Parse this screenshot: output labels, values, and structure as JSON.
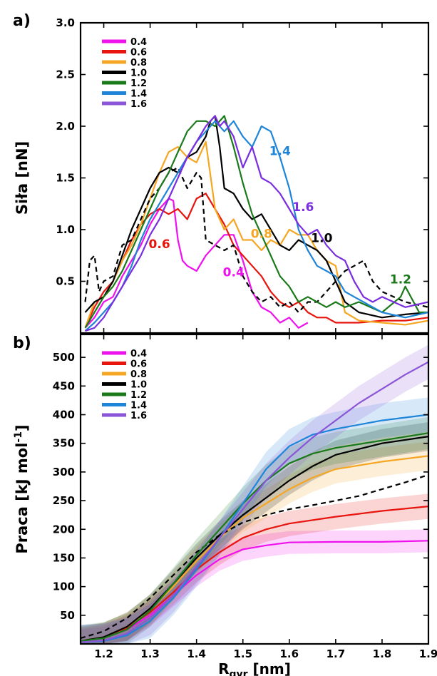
{
  "panel_labels": {
    "a": "a)",
    "b": "b)"
  },
  "colors": {
    "0.4": "#ee11ee",
    "0.6": "#e8150e",
    "0.8": "#f5a623",
    "1.0": "#000000",
    "1.2": "#1a7a1a",
    "1.4": "#1f85d8",
    "1.6": "#8a55d6",
    "1.6a": "#7a2ee0"
  },
  "chart_data": [
    {
      "type": "line",
      "panel": "a)",
      "title": "",
      "xlabel": "",
      "ylabel": "Siła [nN]",
      "xlim": [
        1.15,
        1.9
      ],
      "ylim": [
        0.0,
        3.0
      ],
      "yticks": [
        "0.5",
        "1.0",
        "1.5",
        "2.0",
        "2.5",
        "3.0"
      ],
      "legend_position": "top-left",
      "legend": [
        "0.4",
        "0.6",
        "0.8",
        "1.0",
        "1.2",
        "1.4",
        "1.6"
      ],
      "annotations": [
        {
          "text": "0.4",
          "x": 1.48,
          "y": 0.55,
          "color": "#ee11ee"
        },
        {
          "text": "0.6",
          "x": 1.32,
          "y": 0.82,
          "color": "#e8150e"
        },
        {
          "text": "0.8",
          "x": 1.54,
          "y": 0.92,
          "color": "#f5a623"
        },
        {
          "text": "1.0",
          "x": 1.67,
          "y": 0.88,
          "color": "#000000"
        },
        {
          "text": "1.2",
          "x": 1.84,
          "y": 0.48,
          "color": "#1a7a1a"
        },
        {
          "text": "1.4",
          "x": 1.58,
          "y": 1.72,
          "color": "#1f85d8"
        },
        {
          "text": "1.6",
          "x": 1.63,
          "y": 1.18,
          "color": "#7a2ee0"
        }
      ],
      "series": [
        {
          "name": "0.4",
          "color": "#ee11ee",
          "x": [
            1.16,
            1.18,
            1.2,
            1.22,
            1.24,
            1.26,
            1.28,
            1.3,
            1.32,
            1.34,
            1.35,
            1.36,
            1.37,
            1.38,
            1.4,
            1.42,
            1.44,
            1.46,
            1.48,
            1.5,
            1.52,
            1.54,
            1.56,
            1.58,
            1.6,
            1.62,
            1.64
          ],
          "y": [
            0.05,
            0.15,
            0.3,
            0.35,
            0.55,
            0.7,
            0.85,
            1.05,
            1.2,
            1.3,
            1.28,
            0.9,
            0.7,
            0.65,
            0.6,
            0.75,
            0.85,
            0.95,
            0.95,
            0.7,
            0.4,
            0.25,
            0.2,
            0.1,
            0.15,
            0.05,
            0.1
          ]
        },
        {
          "name": "0.6",
          "color": "#e8150e",
          "x": [
            1.16,
            1.18,
            1.2,
            1.22,
            1.24,
            1.26,
            1.28,
            1.3,
            1.32,
            1.34,
            1.36,
            1.38,
            1.4,
            1.42,
            1.44,
            1.46,
            1.48,
            1.5,
            1.52,
            1.54,
            1.56,
            1.58,
            1.6,
            1.62,
            1.64,
            1.66,
            1.68,
            1.7,
            1.75,
            1.8,
            1.85,
            1.9
          ],
          "y": [
            0.05,
            0.25,
            0.4,
            0.5,
            0.7,
            0.9,
            1.05,
            1.15,
            1.2,
            1.15,
            1.2,
            1.1,
            1.3,
            1.35,
            1.2,
            1.05,
            0.85,
            0.75,
            0.65,
            0.55,
            0.4,
            0.3,
            0.25,
            0.3,
            0.2,
            0.15,
            0.15,
            0.1,
            0.1,
            0.12,
            0.12,
            0.15
          ]
        },
        {
          "name": "0.8",
          "color": "#f5a623",
          "x": [
            1.16,
            1.18,
            1.2,
            1.22,
            1.24,
            1.26,
            1.28,
            1.3,
            1.32,
            1.34,
            1.36,
            1.38,
            1.4,
            1.42,
            1.44,
            1.46,
            1.48,
            1.5,
            1.52,
            1.54,
            1.56,
            1.58,
            1.6,
            1.62,
            1.64,
            1.66,
            1.68,
            1.7,
            1.72,
            1.75,
            1.8,
            1.85,
            1.9
          ],
          "y": [
            0.05,
            0.3,
            0.35,
            0.5,
            0.7,
            0.85,
            1.05,
            1.3,
            1.55,
            1.75,
            1.8,
            1.7,
            1.65,
            1.85,
            1.2,
            1.0,
            1.1,
            0.9,
            0.9,
            0.8,
            0.9,
            0.85,
            1.0,
            0.95,
            0.95,
            0.8,
            0.7,
            0.65,
            0.2,
            0.12,
            0.1,
            0.08,
            0.12
          ]
        },
        {
          "name": "1.0",
          "color": "#000000",
          "style": "solid",
          "x": [
            1.16,
            1.18,
            1.2,
            1.22,
            1.24,
            1.26,
            1.28,
            1.3,
            1.32,
            1.34,
            1.36,
            1.38,
            1.4,
            1.42,
            1.43,
            1.44,
            1.45,
            1.46,
            1.48,
            1.5,
            1.52,
            1.54,
            1.56,
            1.58,
            1.6,
            1.62,
            1.64,
            1.66,
            1.68,
            1.7,
            1.72,
            1.75,
            1.8,
            1.85,
            1.9
          ],
          "y": [
            0.2,
            0.3,
            0.35,
            0.5,
            0.75,
            1.0,
            1.2,
            1.4,
            1.55,
            1.6,
            1.55,
            1.7,
            1.75,
            1.9,
            2.05,
            2.1,
            1.8,
            1.4,
            1.35,
            1.2,
            1.1,
            1.15,
            1.0,
            0.85,
            0.8,
            0.9,
            0.85,
            0.8,
            0.7,
            0.5,
            0.3,
            0.2,
            0.15,
            0.18,
            0.2
          ]
        },
        {
          "name": "",
          "color": "#000000",
          "style": "dashed",
          "x": [
            1.16,
            1.17,
            1.18,
            1.19,
            1.2,
            1.22,
            1.24,
            1.26,
            1.28,
            1.3,
            1.32,
            1.34,
            1.36,
            1.38,
            1.4,
            1.41,
            1.42,
            1.44,
            1.46,
            1.48,
            1.5,
            1.52,
            1.54,
            1.56,
            1.58,
            1.6,
            1.62,
            1.64,
            1.66,
            1.68,
            1.7,
            1.72,
            1.74,
            1.76,
            1.78,
            1.8,
            1.85,
            1.9
          ],
          "y": [
            0.3,
            0.7,
            0.75,
            0.4,
            0.5,
            0.55,
            0.85,
            0.9,
            1.1,
            1.3,
            1.4,
            1.55,
            1.6,
            1.4,
            1.55,
            1.5,
            0.9,
            0.85,
            0.8,
            0.85,
            0.55,
            0.4,
            0.3,
            0.35,
            0.25,
            0.3,
            0.2,
            0.3,
            0.3,
            0.4,
            0.5,
            0.6,
            0.65,
            0.7,
            0.5,
            0.4,
            0.3,
            0.25
          ]
        },
        {
          "name": "1.2",
          "color": "#1a7a1a",
          "x": [
            1.16,
            1.18,
            1.2,
            1.22,
            1.24,
            1.26,
            1.28,
            1.3,
            1.32,
            1.34,
            1.36,
            1.38,
            1.4,
            1.42,
            1.44,
            1.46,
            1.48,
            1.5,
            1.52,
            1.54,
            1.56,
            1.58,
            1.6,
            1.62,
            1.64,
            1.66,
            1.68,
            1.7,
            1.72,
            1.75,
            1.8,
            1.84,
            1.85,
            1.88,
            1.9
          ],
          "y": [
            0.05,
            0.2,
            0.35,
            0.45,
            0.6,
            0.8,
            1.0,
            1.2,
            1.4,
            1.55,
            1.75,
            1.95,
            2.05,
            2.05,
            2.0,
            2.1,
            1.8,
            1.45,
            1.15,
            0.95,
            0.75,
            0.55,
            0.45,
            0.3,
            0.35,
            0.3,
            0.25,
            0.3,
            0.25,
            0.3,
            0.2,
            0.35,
            0.45,
            0.2,
            0.2
          ]
        },
        {
          "name": "1.4",
          "color": "#1f85d8",
          "x": [
            1.16,
            1.18,
            1.2,
            1.22,
            1.24,
            1.26,
            1.28,
            1.3,
            1.32,
            1.34,
            1.36,
            1.38,
            1.4,
            1.42,
            1.44,
            1.46,
            1.48,
            1.5,
            1.52,
            1.54,
            1.56,
            1.58,
            1.6,
            1.62,
            1.64,
            1.66,
            1.68,
            1.7,
            1.72,
            1.74,
            1.76,
            1.78,
            1.8,
            1.85,
            1.9
          ],
          "y": [
            0.02,
            0.1,
            0.2,
            0.3,
            0.45,
            0.65,
            0.9,
            1.1,
            1.25,
            1.4,
            1.55,
            1.7,
            1.85,
            1.95,
            2.05,
            1.95,
            2.05,
            1.9,
            1.8,
            2.0,
            1.95,
            1.7,
            1.4,
            1.0,
            0.8,
            0.65,
            0.6,
            0.55,
            0.4,
            0.35,
            0.3,
            0.25,
            0.2,
            0.15,
            0.2
          ]
        },
        {
          "name": "1.6",
          "color": "#7a2ee0",
          "x": [
            1.16,
            1.18,
            1.2,
            1.22,
            1.24,
            1.26,
            1.28,
            1.3,
            1.32,
            1.34,
            1.36,
            1.38,
            1.4,
            1.42,
            1.44,
            1.45,
            1.46,
            1.48,
            1.5,
            1.52,
            1.54,
            1.56,
            1.58,
            1.6,
            1.62,
            1.64,
            1.66,
            1.68,
            1.7,
            1.72,
            1.74,
            1.76,
            1.78,
            1.8,
            1.85,
            1.9
          ],
          "y": [
            0.02,
            0.05,
            0.15,
            0.3,
            0.45,
            0.6,
            0.75,
            0.95,
            1.1,
            1.3,
            1.5,
            1.7,
            1.85,
            2.0,
            2.1,
            2.0,
            2.05,
            1.9,
            1.6,
            1.8,
            1.5,
            1.45,
            1.35,
            1.2,
            1.05,
            0.95,
            1.0,
            0.85,
            0.75,
            0.7,
            0.5,
            0.35,
            0.3,
            0.35,
            0.25,
            0.3
          ]
        }
      ]
    },
    {
      "type": "line",
      "panel": "b)",
      "title": "",
      "xlabel": "R_gyr [nm]",
      "ylabel": "Praca [kJ mol^-1]",
      "xlim": [
        1.15,
        1.9
      ],
      "ylim": [
        0,
        540
      ],
      "xticks": [
        "1.2",
        "1.3",
        "1.4",
        "1.5",
        "1.6",
        "1.7",
        "1.8",
        "1.9"
      ],
      "yticks": [
        "50",
        "100",
        "150",
        "200",
        "250",
        "300",
        "350",
        "400",
        "450",
        "500"
      ],
      "legend_position": "top-left",
      "legend": [
        "0.4",
        "0.6",
        "0.8",
        "1.0",
        "1.2",
        "1.4",
        "1.6"
      ],
      "series": [
        {
          "name": "0.4",
          "color": "#ee11ee",
          "band": 20,
          "x": [
            1.15,
            1.2,
            1.25,
            1.3,
            1.35,
            1.4,
            1.45,
            1.5,
            1.55,
            1.6,
            1.7,
            1.8,
            1.9
          ],
          "y": [
            5,
            10,
            25,
            50,
            85,
            120,
            148,
            165,
            172,
            177,
            178,
            178,
            180
          ]
        },
        {
          "name": "0.6",
          "color": "#e8150e",
          "band": 22,
          "x": [
            1.15,
            1.2,
            1.25,
            1.3,
            1.35,
            1.4,
            1.45,
            1.5,
            1.55,
            1.6,
            1.7,
            1.8,
            1.9
          ],
          "y": [
            5,
            12,
            28,
            55,
            90,
            130,
            160,
            185,
            200,
            210,
            222,
            232,
            240
          ]
        },
        {
          "name": "0.8",
          "color": "#f5a623",
          "band": 25,
          "x": [
            1.15,
            1.2,
            1.25,
            1.3,
            1.35,
            1.4,
            1.45,
            1.5,
            1.55,
            1.6,
            1.65,
            1.7,
            1.8,
            1.9
          ],
          "y": [
            5,
            12,
            30,
            60,
            100,
            145,
            185,
            220,
            245,
            270,
            290,
            305,
            318,
            328
          ]
        },
        {
          "name": "1.0",
          "color": "#000000",
          "band": 25,
          "x": [
            1.15,
            1.2,
            1.25,
            1.3,
            1.35,
            1.4,
            1.45,
            1.5,
            1.55,
            1.6,
            1.65,
            1.7,
            1.8,
            1.9
          ],
          "y": [
            5,
            12,
            30,
            62,
            105,
            150,
            190,
            225,
            255,
            285,
            310,
            330,
            350,
            362
          ]
        },
        {
          "name": "",
          "color": "#000000",
          "dashed": true,
          "band": 0,
          "x": [
            1.15,
            1.2,
            1.25,
            1.3,
            1.35,
            1.4,
            1.45,
            1.5,
            1.55,
            1.6,
            1.65,
            1.7,
            1.75,
            1.8,
            1.85,
            1.9
          ],
          "y": [
            10,
            22,
            45,
            80,
            120,
            160,
            190,
            212,
            225,
            235,
            242,
            250,
            258,
            270,
            282,
            295
          ]
        },
        {
          "name": "1.2",
          "color": "#1a7a1a",
          "band": 28,
          "x": [
            1.15,
            1.2,
            1.25,
            1.3,
            1.35,
            1.4,
            1.45,
            1.5,
            1.55,
            1.6,
            1.65,
            1.7,
            1.8,
            1.9
          ],
          "y": [
            5,
            10,
            25,
            58,
            105,
            155,
            200,
            245,
            285,
            315,
            332,
            342,
            355,
            368
          ]
        },
        {
          "name": "1.4",
          "color": "#1f85d8",
          "band": 30,
          "x": [
            1.15,
            1.2,
            1.25,
            1.3,
            1.35,
            1.4,
            1.45,
            1.5,
            1.55,
            1.6,
            1.65,
            1.7,
            1.8,
            1.9
          ],
          "y": [
            3,
            5,
            15,
            40,
            80,
            130,
            185,
            245,
            305,
            345,
            365,
            375,
            390,
            400
          ]
        },
        {
          "name": "1.6",
          "color": "#8a55d6",
          "band": 30,
          "x": [
            1.15,
            1.2,
            1.25,
            1.3,
            1.35,
            1.4,
            1.45,
            1.5,
            1.55,
            1.6,
            1.65,
            1.7,
            1.75,
            1.8,
            1.85,
            1.9
          ],
          "y": [
            3,
            6,
            18,
            45,
            85,
            135,
            185,
            235,
            285,
            325,
            360,
            390,
            420,
            445,
            470,
            492
          ]
        }
      ]
    }
  ]
}
